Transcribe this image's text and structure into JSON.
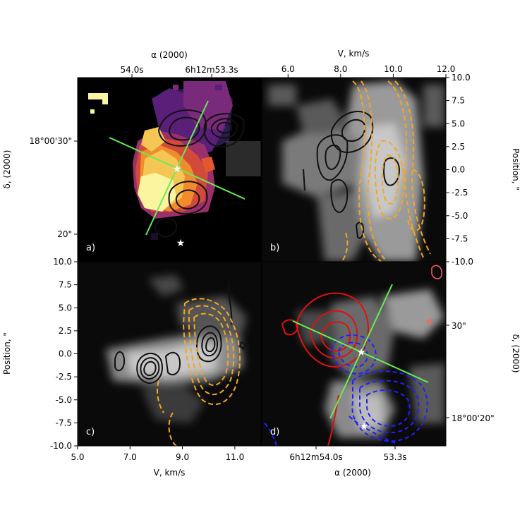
{
  "chart_data": [
    {
      "panel": "a)",
      "type": "heatmap",
      "xlabel": "α (2000)",
      "ylabel": "δ, (2000)",
      "x_ticks": [
        "54.0s",
        "6h12m53.3s"
      ],
      "y_ticks": [
        "18°00'30\"",
        "20\""
      ],
      "overlays": [
        "black intensity contours",
        "green cross lines",
        "white star markers"
      ]
    },
    {
      "panel": "b)",
      "type": "heatmap",
      "xlabel": "V, km/s",
      "ylabel": "Position, \"",
      "xlim": [
        5.0,
        12.0
      ],
      "ylim": [
        -10.0,
        10.0
      ],
      "x_ticks": [
        "6.0",
        "8.0",
        "10.0",
        "12.0"
      ],
      "y_ticks": [
        "10.0",
        "7.5",
        "5.0",
        "2.5",
        "0.0",
        "-2.5",
        "-5.0",
        "-7.5",
        "-10.0"
      ],
      "overlays": [
        "black solid contours",
        "orange dashed contours"
      ]
    },
    {
      "panel": "c)",
      "type": "heatmap",
      "xlabel": "V, km/s",
      "ylabel": "Position, \"",
      "xlim": [
        5.0,
        12.0
      ],
      "ylim": [
        -10.0,
        10.0
      ],
      "x_ticks": [
        "5.0",
        "7.0",
        "9.0",
        "11.0"
      ],
      "y_ticks": [
        "10.0",
        "7.5",
        "5.0",
        "2.5",
        "0.0",
        "-2.5",
        "-5.0",
        "-7.5",
        "-10.0"
      ],
      "overlays": [
        "black solid contours",
        "orange dashed contours"
      ]
    },
    {
      "panel": "d)",
      "type": "heatmap",
      "xlabel": "α (2000)",
      "ylabel": "δ, (2000)",
      "x_ticks": [
        "6h12m54.0s",
        "53.3s"
      ],
      "y_ticks": [
        "30\"",
        "18°00'20\""
      ],
      "overlays": [
        "red solid contours",
        "blue dashed contours",
        "green cross lines",
        "white star markers"
      ]
    }
  ],
  "colors": {
    "contour_black": "#111111",
    "contour_orange": "#f5a623",
    "contour_red": "#e01010",
    "contour_blue": "#2020ff",
    "cross_green": "#66ee55",
    "star": "#ffffff"
  }
}
